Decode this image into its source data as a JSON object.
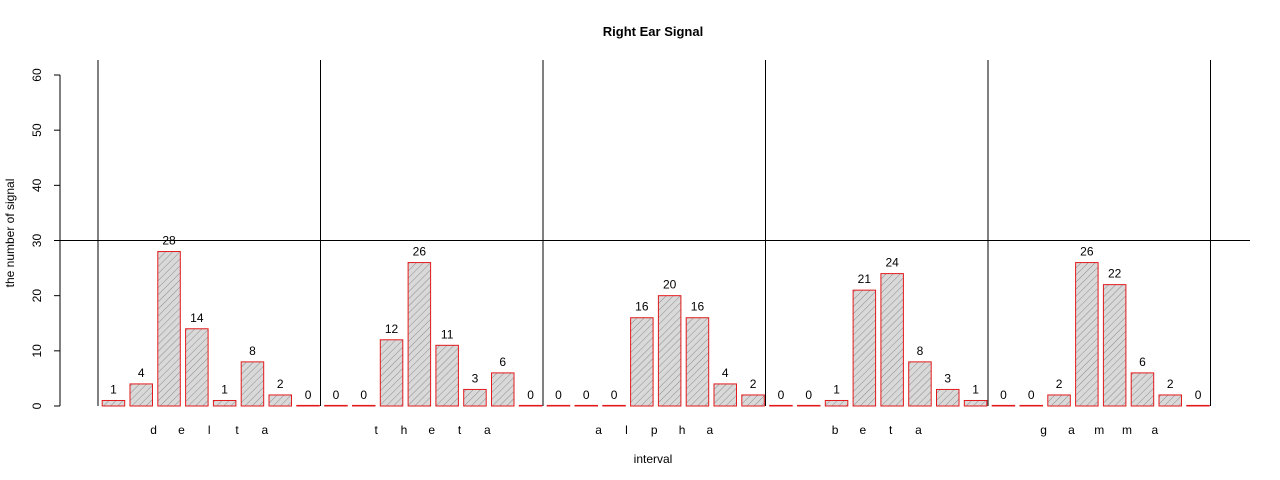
{
  "chart_data": {
    "type": "bar",
    "title": "Right Ear Signal",
    "xlabel": "interval",
    "ylabel": "the number of signal",
    "ylim": [
      0,
      60
    ],
    "yticks": [
      0,
      10,
      20,
      30,
      40,
      50,
      60
    ],
    "reference_line_y": 30,
    "bar_fill": "#d9d9d9",
    "bar_border": "#e31a1c",
    "hatch_color": "#8c8c8c",
    "groups": [
      {
        "letters": [
          "d",
          "e",
          "l",
          "t",
          "a"
        ],
        "values": [
          1,
          4,
          28,
          14,
          1,
          8,
          2,
          0
        ]
      },
      {
        "letters": [
          "t",
          "h",
          "e",
          "t",
          "a"
        ],
        "values": [
          0,
          0,
          12,
          26,
          11,
          3,
          6,
          0
        ]
      },
      {
        "letters": [
          "a",
          "l",
          "p",
          "h",
          "a"
        ],
        "values": [
          0,
          0,
          0,
          16,
          20,
          16,
          4,
          2
        ]
      },
      {
        "letters": [
          "b",
          "e",
          "t",
          "a"
        ],
        "values": [
          0,
          0,
          1,
          21,
          24,
          8,
          3,
          1
        ]
      },
      {
        "letters": [
          "g",
          "a",
          "m",
          "m",
          "a"
        ],
        "values": [
          0,
          0,
          2,
          26,
          22,
          6,
          2,
          0
        ]
      }
    ]
  }
}
